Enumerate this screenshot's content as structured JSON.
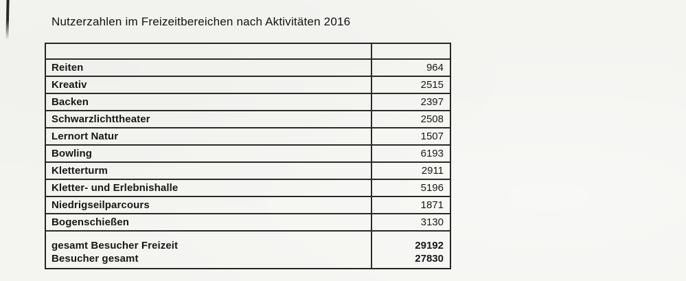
{
  "page": {
    "title": "Nutzerzahlen im Freizeitbereichen nach Aktivitäten 2016"
  },
  "table": {
    "header": {
      "label": "",
      "value": ""
    },
    "rows": [
      {
        "label": "Reiten",
        "value": "964"
      },
      {
        "label": "Kreativ",
        "value": "2515"
      },
      {
        "label": "Backen",
        "value": "2397"
      },
      {
        "label": "Schwarzlichttheater",
        "value": "2508"
      },
      {
        "label": "Lernort Natur",
        "value": "1507"
      },
      {
        "label": "Bowling",
        "value": "6193"
      },
      {
        "label": "Kletterturm",
        "value": "2911"
      },
      {
        "label": "Kletter- und Erlebnishalle",
        "value": "5196"
      },
      {
        "label": "Niedrigseilparcours",
        "value": "1871"
      },
      {
        "label": "Bogenschießen",
        "value": "3130"
      }
    ],
    "totals": [
      {
        "label": "gesamt Besucher Freizeit",
        "value": "29192"
      },
      {
        "label": "Besucher gesamt",
        "value": "27830"
      }
    ]
  },
  "colors": {
    "paper": "#f4f4f1",
    "ink": "#171717",
    "border": "#2a2a27"
  }
}
